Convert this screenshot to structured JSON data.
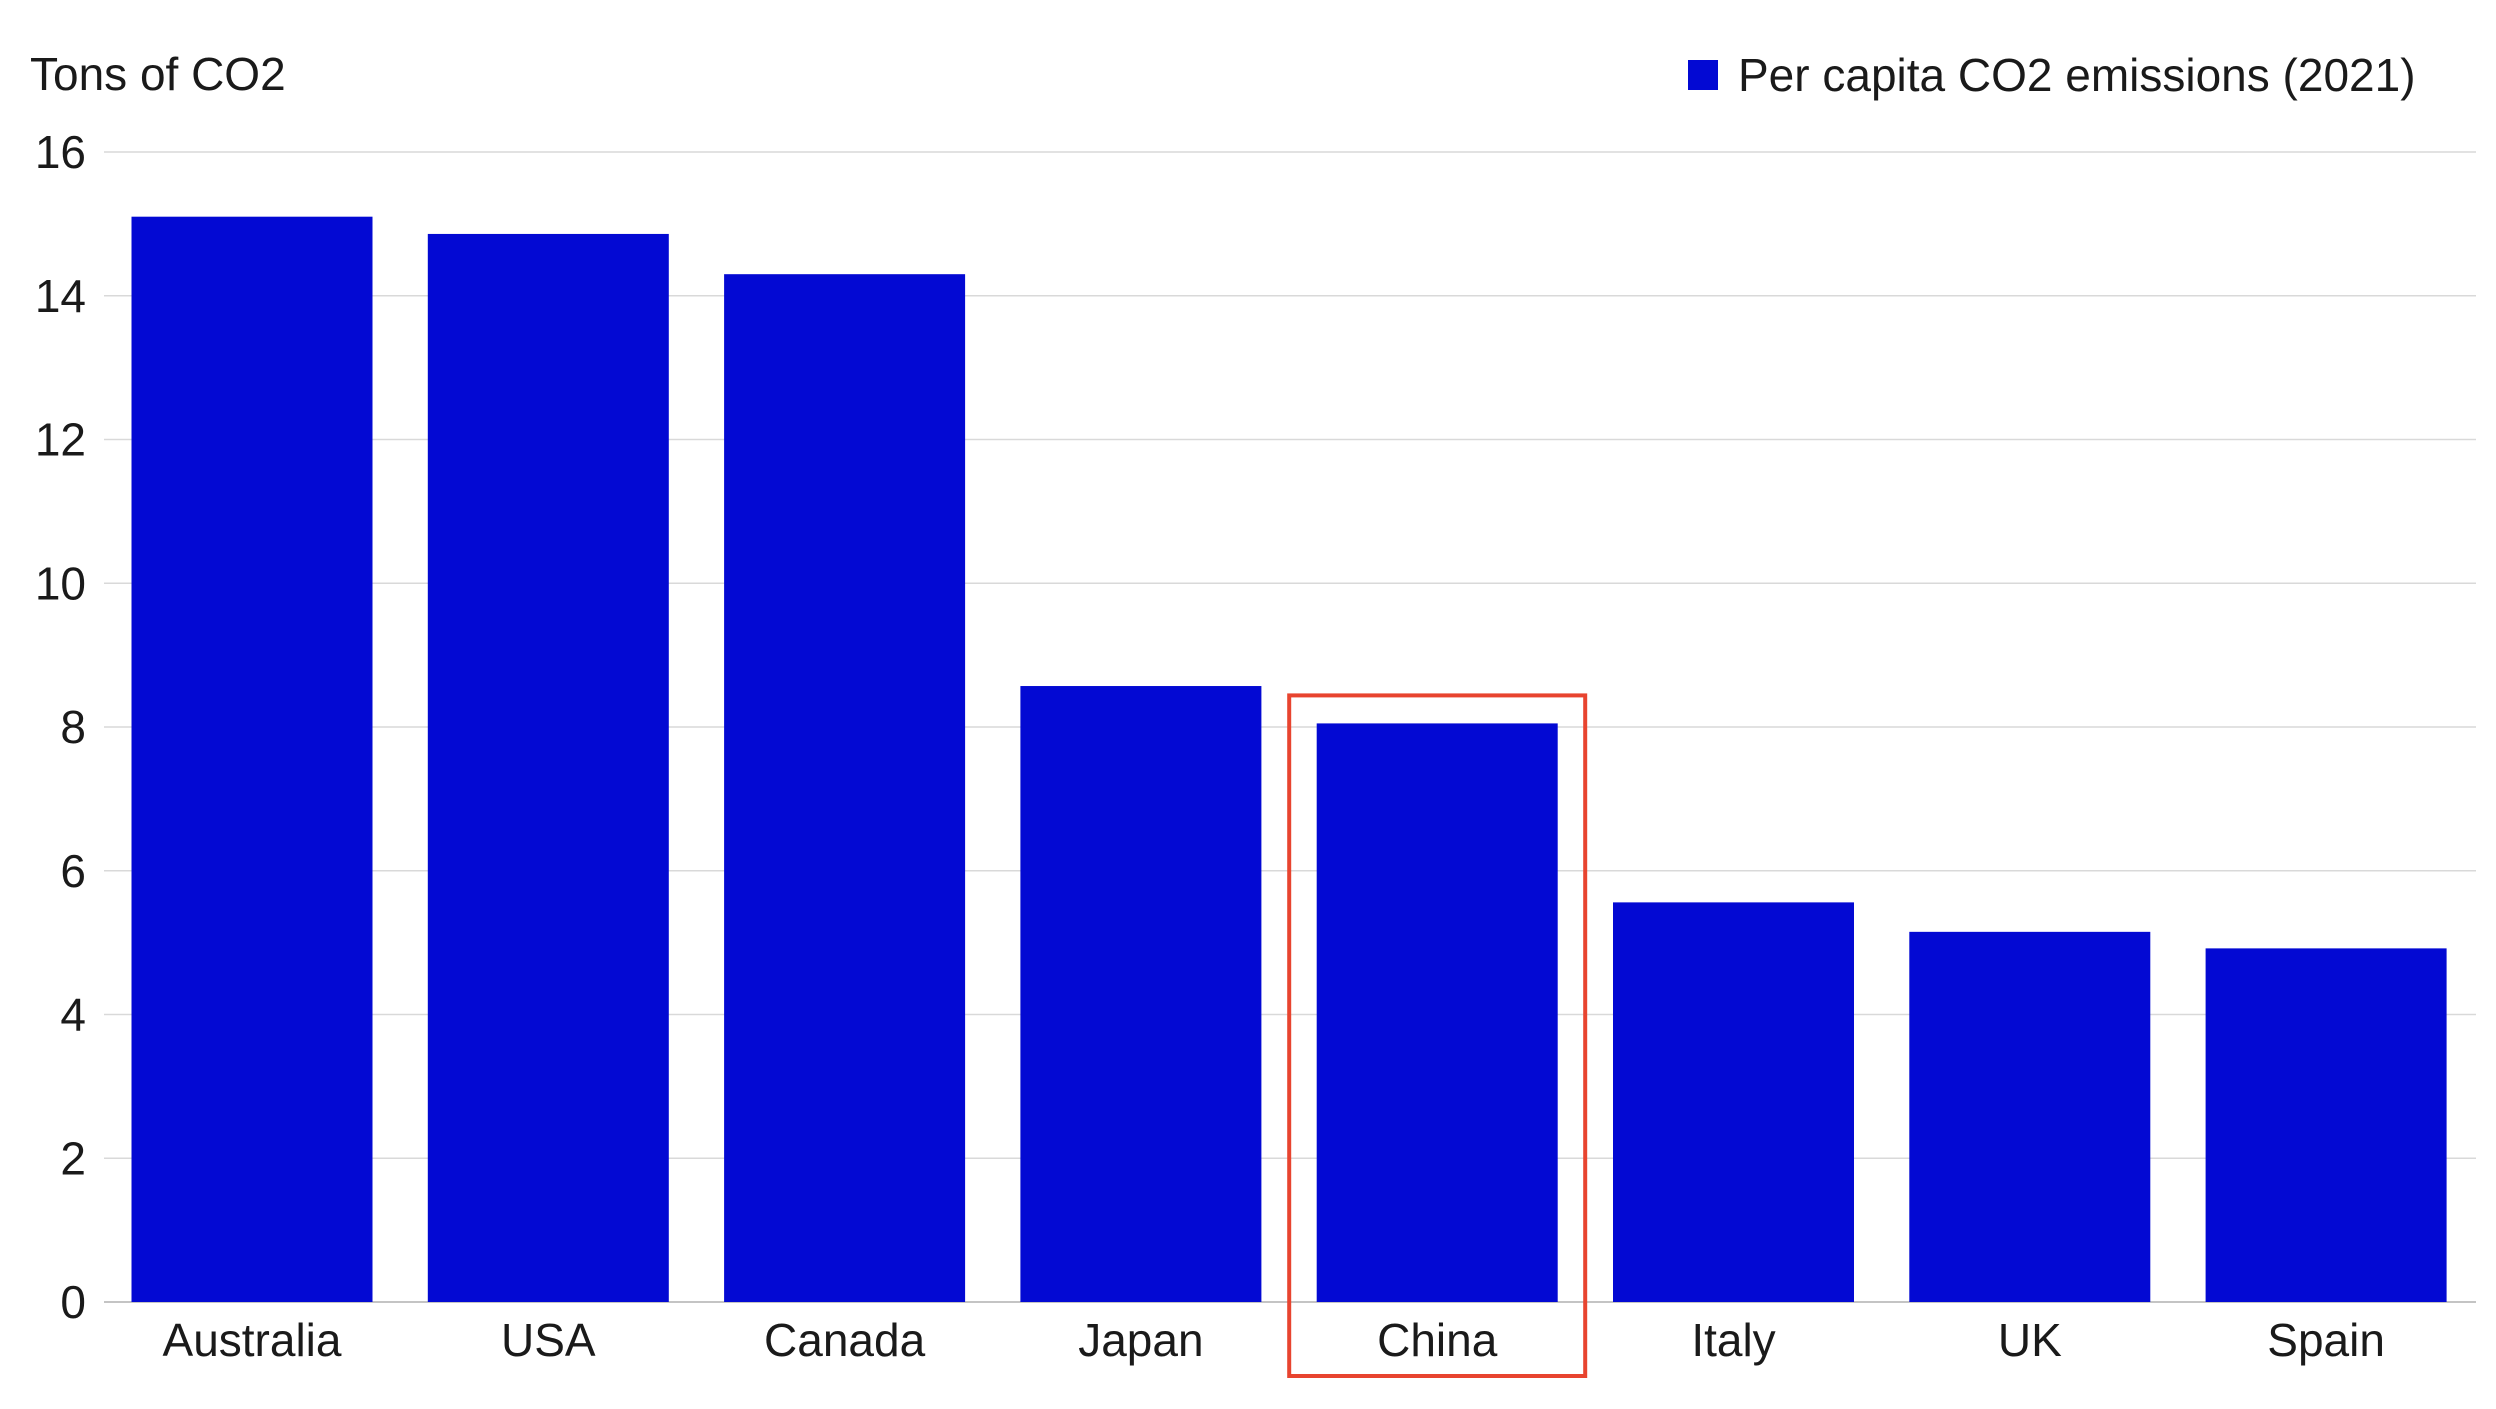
{
  "chart_data": {
    "type": "bar",
    "title": "",
    "ylabel": "Tons of CO2",
    "xlabel": "",
    "ylim": [
      0,
      16
    ],
    "yticks": [
      0,
      2,
      4,
      6,
      8,
      10,
      12,
      14,
      16
    ],
    "grid": true,
    "legend_position": "top-right",
    "categories": [
      "Australia",
      "USA",
      "Canada",
      "Japan",
      "China",
      "Italy",
      "UK",
      "Spain"
    ],
    "series": [
      {
        "name": "Per capita CO2 emissions (2021)",
        "color": "#0309d3",
        "values": [
          15.1,
          14.86,
          14.3,
          8.57,
          8.05,
          5.56,
          5.15,
          4.92
        ]
      }
    ],
    "highlight": {
      "category": "China",
      "color": "#e8442f"
    }
  }
}
